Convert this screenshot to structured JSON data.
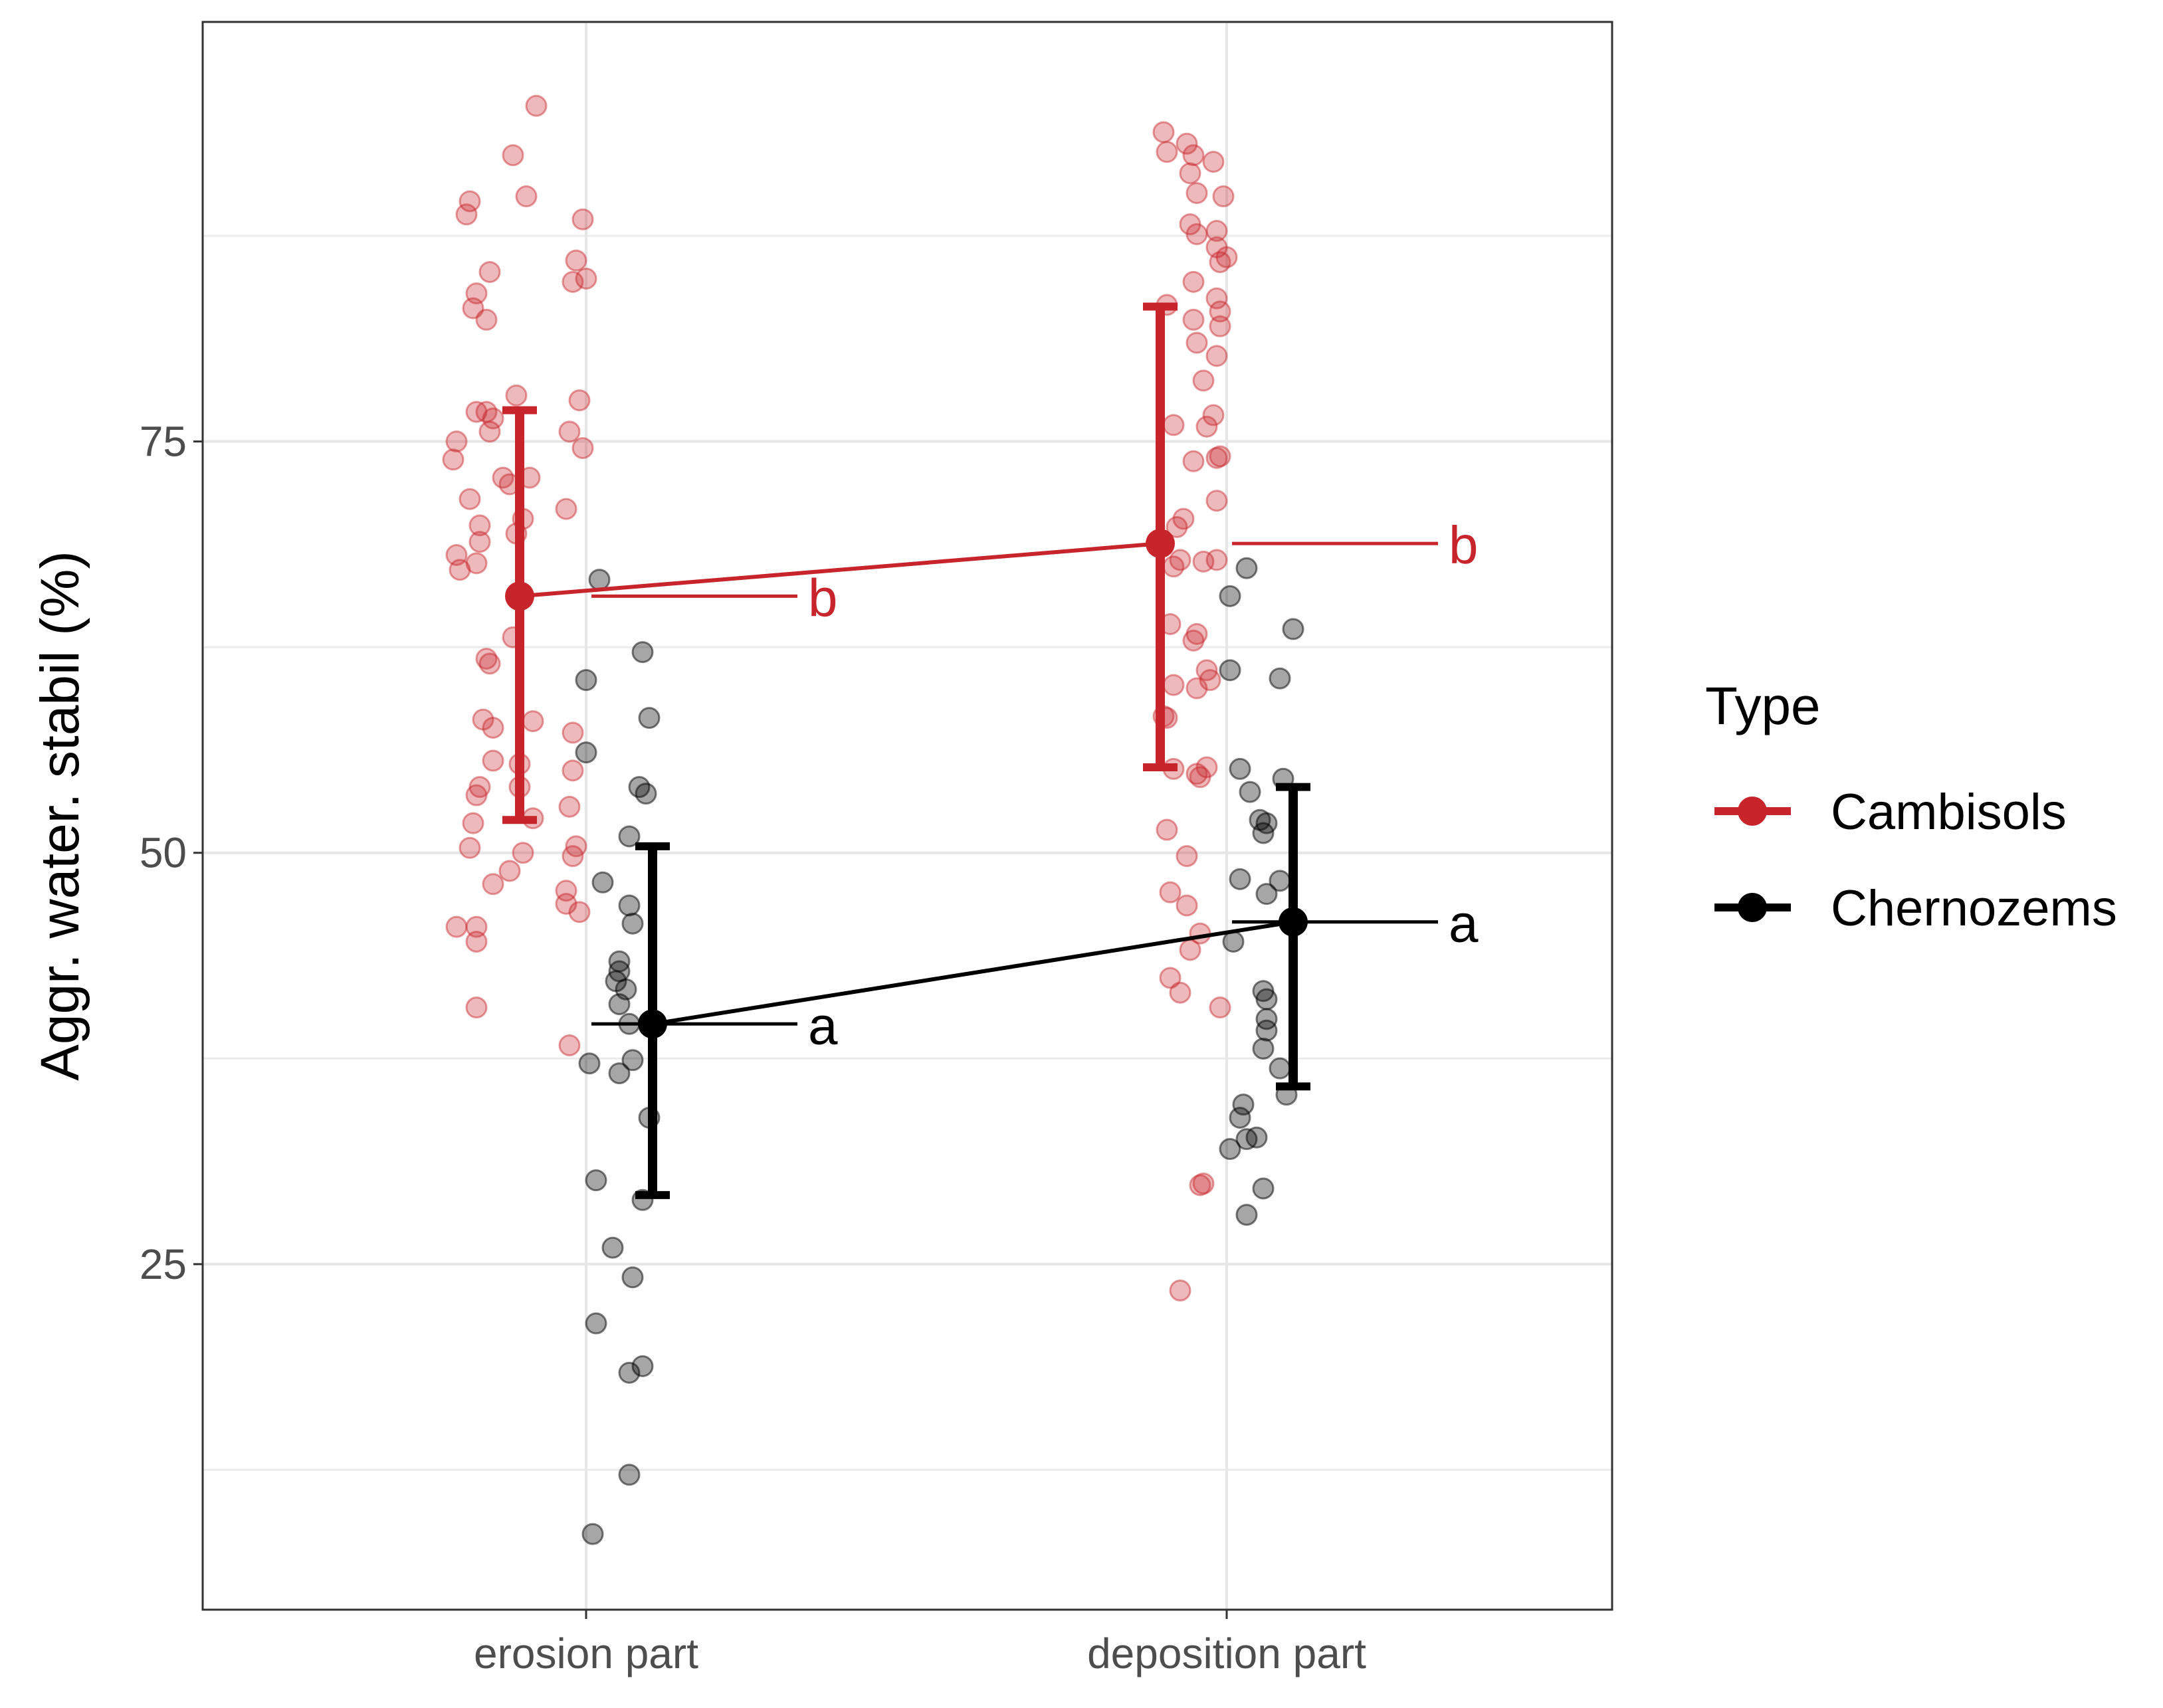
{
  "chart_data": {
    "type": "scatter",
    "title": "",
    "xlabel": "",
    "ylabel": "Aggr. water. stabil (%)",
    "categories": [
      "erosion part",
      "deposition part"
    ],
    "ylim": [
      4,
      100.5
    ],
    "yticks": [
      25,
      50,
      75
    ],
    "legend": {
      "title": "Type",
      "position": "right",
      "entries": [
        {
          "name": "Cambisols",
          "color": "#c8242b"
        },
        {
          "name": "Chernozems",
          "color": "#000000"
        }
      ]
    },
    "series": [
      {
        "name": "Cambisols",
        "color": "#c8242b",
        "means": [
          65.6,
          68.8
        ],
        "error_low": [
          52.0,
          55.2
        ],
        "error_high": [
          76.9,
          83.2
        ],
        "letters": [
          "b",
          "b"
        ],
        "points": [
          [
            [
              -0.15,
              95.4
            ],
            [
              -0.22,
              92.4
            ],
            [
              -0.18,
              89.9
            ],
            [
              -0.35,
              89.6
            ],
            [
              -0.36,
              88.8
            ],
            [
              -0.01,
              88.5
            ],
            [
              -0.03,
              86.0
            ],
            [
              -0.29,
              85.3
            ],
            [
              -0.04,
              84.7
            ],
            [
              0.0,
              84.9
            ],
            [
              -0.33,
              84.0
            ],
            [
              -0.34,
              83.1
            ],
            [
              -0.3,
              82.4
            ],
            [
              -0.21,
              77.8
            ],
            [
              -0.02,
              77.5
            ],
            [
              -0.33,
              76.8
            ],
            [
              -0.3,
              76.8
            ],
            [
              -0.28,
              76.4
            ],
            [
              -0.05,
              75.6
            ],
            [
              -0.29,
              75.6
            ],
            [
              -0.39,
              75.0
            ],
            [
              -0.01,
              74.6
            ],
            [
              -0.4,
              73.9
            ],
            [
              -0.25,
              72.8
            ],
            [
              -0.23,
              72.4
            ],
            [
              -0.17,
              72.8
            ],
            [
              -0.35,
              71.5
            ],
            [
              -0.06,
              70.9
            ],
            [
              -0.19,
              70.3
            ],
            [
              -0.32,
              69.9
            ],
            [
              -0.21,
              69.4
            ],
            [
              -0.32,
              68.9
            ],
            [
              -0.39,
              68.1
            ],
            [
              -0.33,
              67.6
            ],
            [
              -0.38,
              67.2
            ],
            [
              -0.22,
              63.1
            ],
            [
              -0.3,
              61.8
            ],
            [
              -0.29,
              61.5
            ],
            [
              -0.31,
              58.1
            ],
            [
              -0.28,
              57.6
            ],
            [
              -0.16,
              58.0
            ],
            [
              -0.04,
              57.3
            ],
            [
              -0.28,
              55.6
            ],
            [
              -0.2,
              55.4
            ],
            [
              -0.04,
              55.0
            ],
            [
              -0.32,
              54.0
            ],
            [
              -0.2,
              54.0
            ],
            [
              -0.33,
              53.5
            ],
            [
              -0.05,
              52.8
            ],
            [
              -0.16,
              52.1
            ],
            [
              -0.34,
              51.8
            ],
            [
              -0.35,
              50.3
            ],
            [
              -0.19,
              50.0
            ],
            [
              -0.03,
              50.4
            ],
            [
              -0.04,
              49.8
            ],
            [
              -0.23,
              48.9
            ],
            [
              -0.28,
              48.1
            ],
            [
              -0.06,
              47.7
            ],
            [
              -0.06,
              46.9
            ],
            [
              -0.02,
              46.4
            ],
            [
              -0.39,
              45.5
            ],
            [
              -0.33,
              45.5
            ],
            [
              -0.33,
              44.6
            ],
            [
              -0.33,
              40.6
            ],
            [
              -0.05,
              38.3
            ]
          ],
          [
            [
              -0.19,
              93.8
            ],
            [
              -0.12,
              93.1
            ],
            [
              -0.18,
              92.6
            ],
            [
              -0.1,
              92.4
            ],
            [
              -0.04,
              92.0
            ],
            [
              -0.11,
              91.3
            ],
            [
              -0.09,
              90.1
            ],
            [
              -0.01,
              89.9
            ],
            [
              -0.11,
              88.2
            ],
            [
              -0.03,
              87.8
            ],
            [
              -0.09,
              87.6
            ],
            [
              -0.03,
              86.8
            ],
            [
              -0.02,
              85.9
            ],
            [
              0.0,
              86.2
            ],
            [
              -0.1,
              84.7
            ],
            [
              -0.03,
              83.7
            ],
            [
              -0.18,
              83.3
            ],
            [
              -0.02,
              82.9
            ],
            [
              -0.02,
              82.0
            ],
            [
              -0.1,
              82.4
            ],
            [
              -0.09,
              81.0
            ],
            [
              -0.03,
              80.2
            ],
            [
              -0.07,
              78.7
            ],
            [
              -0.04,
              76.6
            ],
            [
              -0.16,
              76.0
            ],
            [
              -0.06,
              75.9
            ],
            [
              -0.1,
              73.8
            ],
            [
              -0.03,
              74.0
            ],
            [
              -0.02,
              74.1
            ],
            [
              -0.03,
              71.4
            ],
            [
              -0.13,
              70.3
            ],
            [
              -0.15,
              69.8
            ],
            [
              -0.07,
              67.7
            ],
            [
              -0.03,
              67.8
            ],
            [
              -0.16,
              67.4
            ],
            [
              -0.14,
              67.8
            ],
            [
              -0.17,
              63.9
            ],
            [
              -0.09,
              63.3
            ],
            [
              -0.1,
              62.9
            ],
            [
              -0.06,
              61.1
            ],
            [
              -0.05,
              60.5
            ],
            [
              -0.16,
              60.2
            ],
            [
              -0.09,
              60.0
            ],
            [
              -0.19,
              58.3
            ],
            [
              -0.18,
              58.2
            ],
            [
              -0.06,
              55.2
            ],
            [
              -0.16,
              55.1
            ],
            [
              -0.09,
              54.8
            ],
            [
              -0.08,
              54.6
            ],
            [
              -0.18,
              51.4
            ],
            [
              -0.12,
              49.8
            ],
            [
              -0.17,
              47.6
            ],
            [
              -0.12,
              46.8
            ],
            [
              -0.08,
              45.1
            ],
            [
              -0.11,
              44.1
            ],
            [
              -0.17,
              42.4
            ],
            [
              -0.14,
              41.5
            ],
            [
              -0.02,
              40.6
            ],
            [
              -0.08,
              29.8
            ],
            [
              -0.07,
              29.9
            ],
            [
              -0.14,
              23.4
            ]
          ]
        ]
      },
      {
        "name": "Chernozems",
        "color": "#000000",
        "means": [
          39.6,
          45.8
        ],
        "error_low": [
          29.2,
          35.8
        ],
        "error_high": [
          50.4,
          54.0
        ],
        "letters": [
          "a",
          "a"
        ],
        "points": [
          [
            [
              0.04,
              66.6
            ],
            [
              0.17,
              62.2
            ],
            [
              0.0,
              60.5
            ],
            [
              0.19,
              58.2
            ],
            [
              0.0,
              56.1
            ],
            [
              0.16,
              54.0
            ],
            [
              0.18,
              53.6
            ],
            [
              0.13,
              51.0
            ],
            [
              0.05,
              48.2
            ],
            [
              0.13,
              46.8
            ],
            [
              0.14,
              45.7
            ],
            [
              0.1,
              43.4
            ],
            [
              0.1,
              42.8
            ],
            [
              0.09,
              42.2
            ],
            [
              0.12,
              41.7
            ],
            [
              0.1,
              40.8
            ],
            [
              0.13,
              39.6
            ],
            [
              0.01,
              37.2
            ],
            [
              0.14,
              37.4
            ],
            [
              0.1,
              36.6
            ],
            [
              0.19,
              33.9
            ],
            [
              0.03,
              30.1
            ],
            [
              0.17,
              28.9
            ],
            [
              0.08,
              26.0
            ],
            [
              0.14,
              24.2
            ],
            [
              0.03,
              21.4
            ],
            [
              0.17,
              18.8
            ],
            [
              0.13,
              18.4
            ],
            [
              0.13,
              12.2
            ],
            [
              0.02,
              8.6
            ]
          ],
          [
            [
              0.06,
              67.3
            ],
            [
              0.01,
              65.6
            ],
            [
              0.01,
              61.1
            ],
            [
              0.16,
              60.6
            ],
            [
              0.2,
              63.6
            ],
            [
              0.04,
              55.1
            ],
            [
              0.07,
              53.7
            ],
            [
              0.17,
              54.5
            ],
            [
              0.1,
              52.0
            ],
            [
              0.12,
              51.8
            ],
            [
              0.11,
              51.2
            ],
            [
              0.04,
              48.4
            ],
            [
              0.16,
              48.3
            ],
            [
              0.12,
              47.5
            ],
            [
              0.2,
              45.6
            ],
            [
              0.02,
              44.6
            ],
            [
              0.11,
              41.6
            ],
            [
              0.12,
              41.1
            ],
            [
              0.12,
              39.9
            ],
            [
              0.12,
              39.2
            ],
            [
              0.11,
              38.1
            ],
            [
              0.16,
              36.9
            ],
            [
              0.18,
              35.3
            ],
            [
              0.05,
              34.7
            ],
            [
              0.04,
              33.9
            ],
            [
              0.06,
              32.6
            ],
            [
              0.09,
              32.7
            ],
            [
              0.01,
              32.0
            ],
            [
              0.11,
              29.6
            ],
            [
              0.06,
              28.0
            ]
          ]
        ]
      }
    ]
  }
}
